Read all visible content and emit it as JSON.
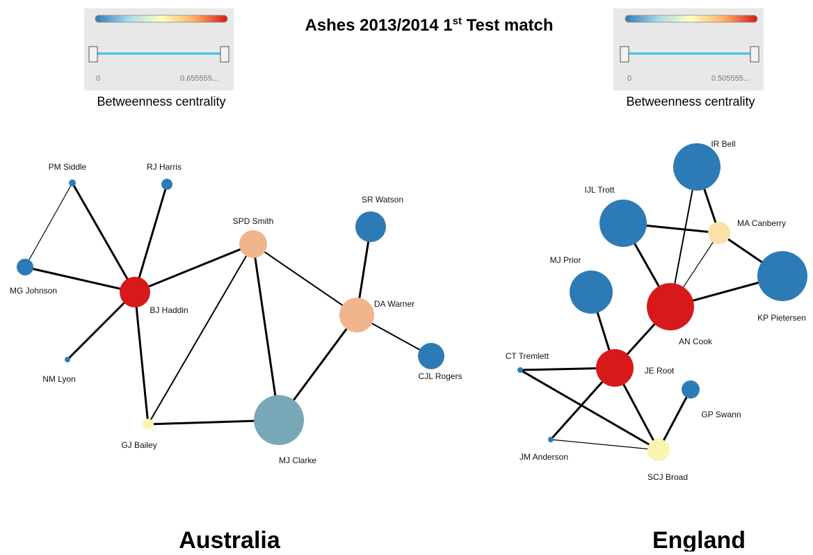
{
  "title": {
    "before": "Ashes 2013/2014 1",
    "sup": "st",
    "after": " Test match"
  },
  "sliders": [
    {
      "min": "0",
      "max": "0.655555...",
      "label": "Betweenness centrality"
    },
    {
      "min": "0",
      "max": "0.505555...",
      "label": "Betweenness centrality"
    }
  ],
  "teams": [
    {
      "name": "Australia",
      "nodes": [
        "PM Siddle",
        "RJ Harris",
        "MG Johnson",
        "BJ Haddin",
        "NM Lyon",
        "SPD Smith",
        "SR Watson",
        "DA Warner",
        "CJL Rogers",
        "GJ Bailey",
        "MJ Clarke"
      ]
    },
    {
      "name": "England",
      "nodes": [
        "IR Bell",
        "IJL Trott",
        "MA Canberry",
        "MJ Prior",
        "KP Pietersen",
        "AN Cook",
        "CT Tremlett",
        "JE Root",
        "GP Swann",
        "JM Anderson",
        "SCJ Broad"
      ]
    }
  ]
}
